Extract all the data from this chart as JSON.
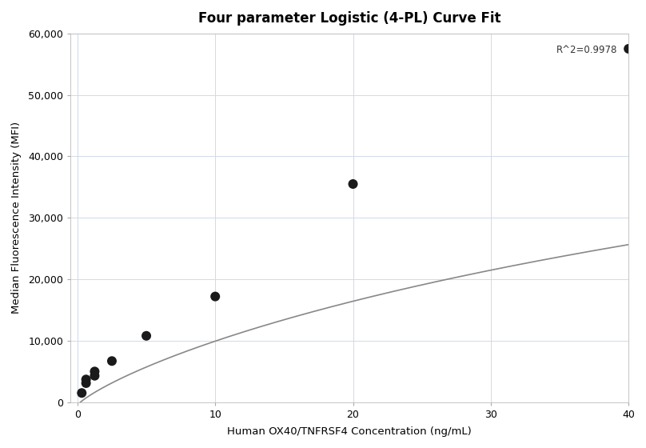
{
  "title": "Four parameter Logistic (4-PL) Curve Fit",
  "xlabel": "Human OX40/TNFRSF4 Concentration (ng/mL)",
  "ylabel": "Median Fluorescence Intensity (MFI)",
  "scatter_x": [
    0.313,
    0.625,
    0.625,
    1.25,
    1.25,
    2.5,
    5.0,
    10.0,
    20.0,
    40.0
  ],
  "scatter_y": [
    1500,
    3100,
    3700,
    4300,
    5000,
    6700,
    10800,
    17200,
    35500,
    57500
  ],
  "r_squared": "R^2=0.9978",
  "xlim": [
    -0.5,
    40
  ],
  "ylim": [
    0,
    60000
  ],
  "xticks": [
    0,
    10,
    20,
    30,
    40
  ],
  "yticks": [
    0,
    10000,
    20000,
    30000,
    40000,
    50000,
    60000
  ],
  "dot_color": "#1a1a1a",
  "dot_size": 75,
  "line_color": "#888888",
  "line_width": 1.2,
  "grid_color": "#d0daea",
  "background_color": "#ffffff",
  "title_fontsize": 12,
  "label_fontsize": 9.5,
  "tick_fontsize": 9,
  "annotation_fontsize": 8.5,
  "4pl_A": -500,
  "4pl_B": 0.82,
  "4pl_C": 120.0,
  "4pl_D": 90000
}
